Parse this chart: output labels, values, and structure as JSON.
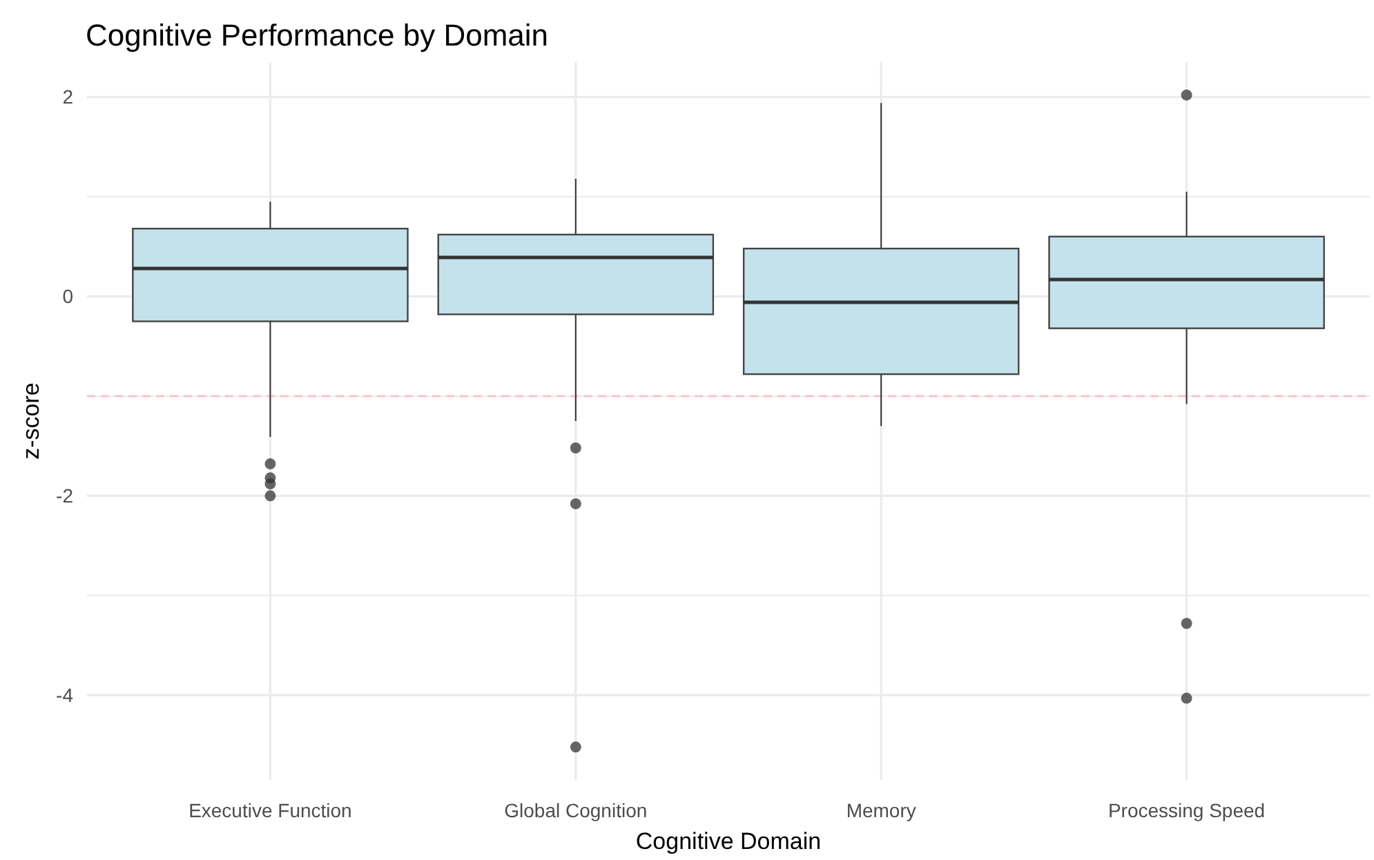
{
  "chart_data": {
    "type": "box",
    "title": "Cognitive Performance by Domain",
    "xlabel": "Cognitive Domain",
    "ylabel": "z-score",
    "categories": [
      "Executive Function",
      "Global Cognition",
      "Memory",
      "Processing Speed"
    ],
    "color": "#c3e2ec",
    "marker": "circle",
    "grid": true,
    "boxes": [
      {
        "low": -1.41,
        "q1": -0.25,
        "median": 0.28,
        "q3": 0.68,
        "high": 0.95,
        "outliers": [
          -1.68,
          -1.82,
          -1.88,
          -2.0
        ]
      },
      {
        "low": -1.25,
        "q1": -0.18,
        "median": 0.39,
        "q3": 0.62,
        "high": 1.18,
        "outliers": [
          -1.52,
          -2.08,
          -4.52
        ]
      },
      {
        "low": -1.3,
        "q1": -0.78,
        "median": -0.06,
        "q3": 0.48,
        "high": 1.94
      },
      {
        "low": -1.08,
        "q1": -0.32,
        "median": 0.17,
        "q3": 0.6,
        "high": 1.05,
        "outliers": [
          2.02,
          -3.28,
          -4.03
        ]
      }
    ],
    "ylim": [
      -4.85,
      2.35
    ],
    "yticks": [
      {
        "value": -3,
        "label": null
      },
      {
        "value": -1,
        "label": null
      },
      {
        "value": 1,
        "label": null
      },
      {
        "value": -4,
        "label": "-4"
      },
      {
        "value": -2,
        "label": "-2"
      },
      {
        "value": 0,
        "label": "0"
      },
      {
        "value": 2,
        "label": "2"
      }
    ],
    "ref_lines": [
      {
        "axis": "y",
        "value": -1,
        "color": "#ffc0cb",
        "line_style": "dashed"
      }
    ]
  }
}
